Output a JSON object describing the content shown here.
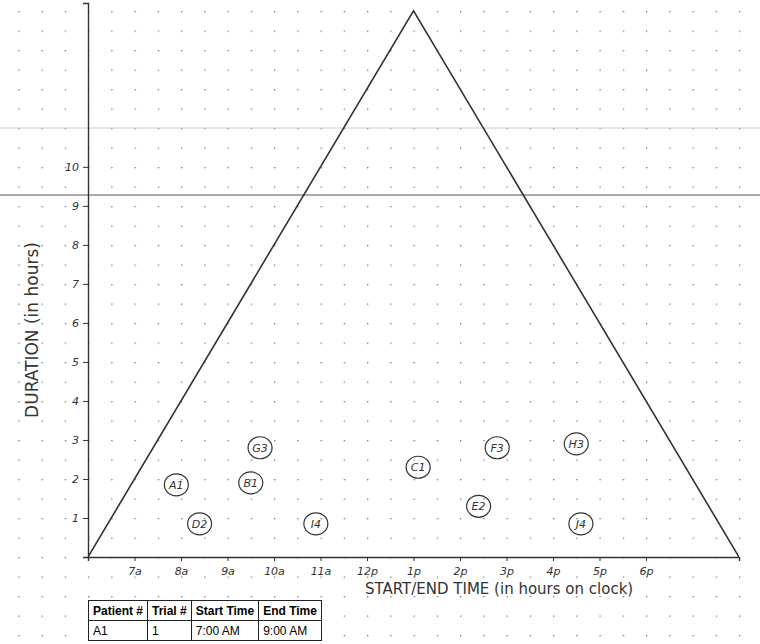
{
  "chart_data": {
    "type": "scatter",
    "x_label": "START/END TIME (in hours on clock)",
    "y_label": "DURATION (in hours)",
    "xlim": [
      6,
      20
    ],
    "ylim": [
      0,
      14.2
    ],
    "xticks": [
      {
        "value": 7,
        "label": "7a"
      },
      {
        "value": 8,
        "label": "8a"
      },
      {
        "value": 9,
        "label": "9a"
      },
      {
        "value": 10,
        "label": "10a"
      },
      {
        "value": 11,
        "label": "11a"
      },
      {
        "value": 12,
        "label": "12p"
      },
      {
        "value": 13,
        "label": "1p"
      },
      {
        "value": 14,
        "label": "2p"
      },
      {
        "value": 15,
        "label": "3p"
      },
      {
        "value": 16,
        "label": "4p"
      },
      {
        "value": 17,
        "label": "5p"
      },
      {
        "value": 18,
        "label": "6p"
      }
    ],
    "yticks": [
      1,
      2,
      3,
      4,
      5,
      6,
      7,
      8,
      9,
      10
    ],
    "grid": false,
    "series": [
      {
        "type": "line",
        "x": [
          6,
          13,
          20
        ],
        "values": [
          0,
          14,
          0
        ],
        "color": "#333333",
        "line_style": "solid"
      },
      {
        "type": "scatter",
        "marker": "circle",
        "color": "#333333",
        "x": [
          7.9,
          8.4,
          9.7,
          9.5,
          13.1,
          10.9,
          14.8,
          14.4,
          16.5,
          16.6
        ],
        "values": [
          1.85,
          0.85,
          2.8,
          1.9,
          2.3,
          0.85,
          2.8,
          1.3,
          2.9,
          0.85
        ],
        "labels": [
          "A1",
          "D2",
          "G3",
          "B1",
          "C1",
          "I4",
          "F3",
          "E2",
          "H3",
          "J4"
        ]
      }
    ]
  },
  "table": {
    "header": [
      "Patient #",
      "Trial #",
      "Start Time",
      "End Time"
    ],
    "rows": [
      [
        "A1",
        "1",
        "7:00 AM",
        "9:00 AM"
      ]
    ]
  }
}
